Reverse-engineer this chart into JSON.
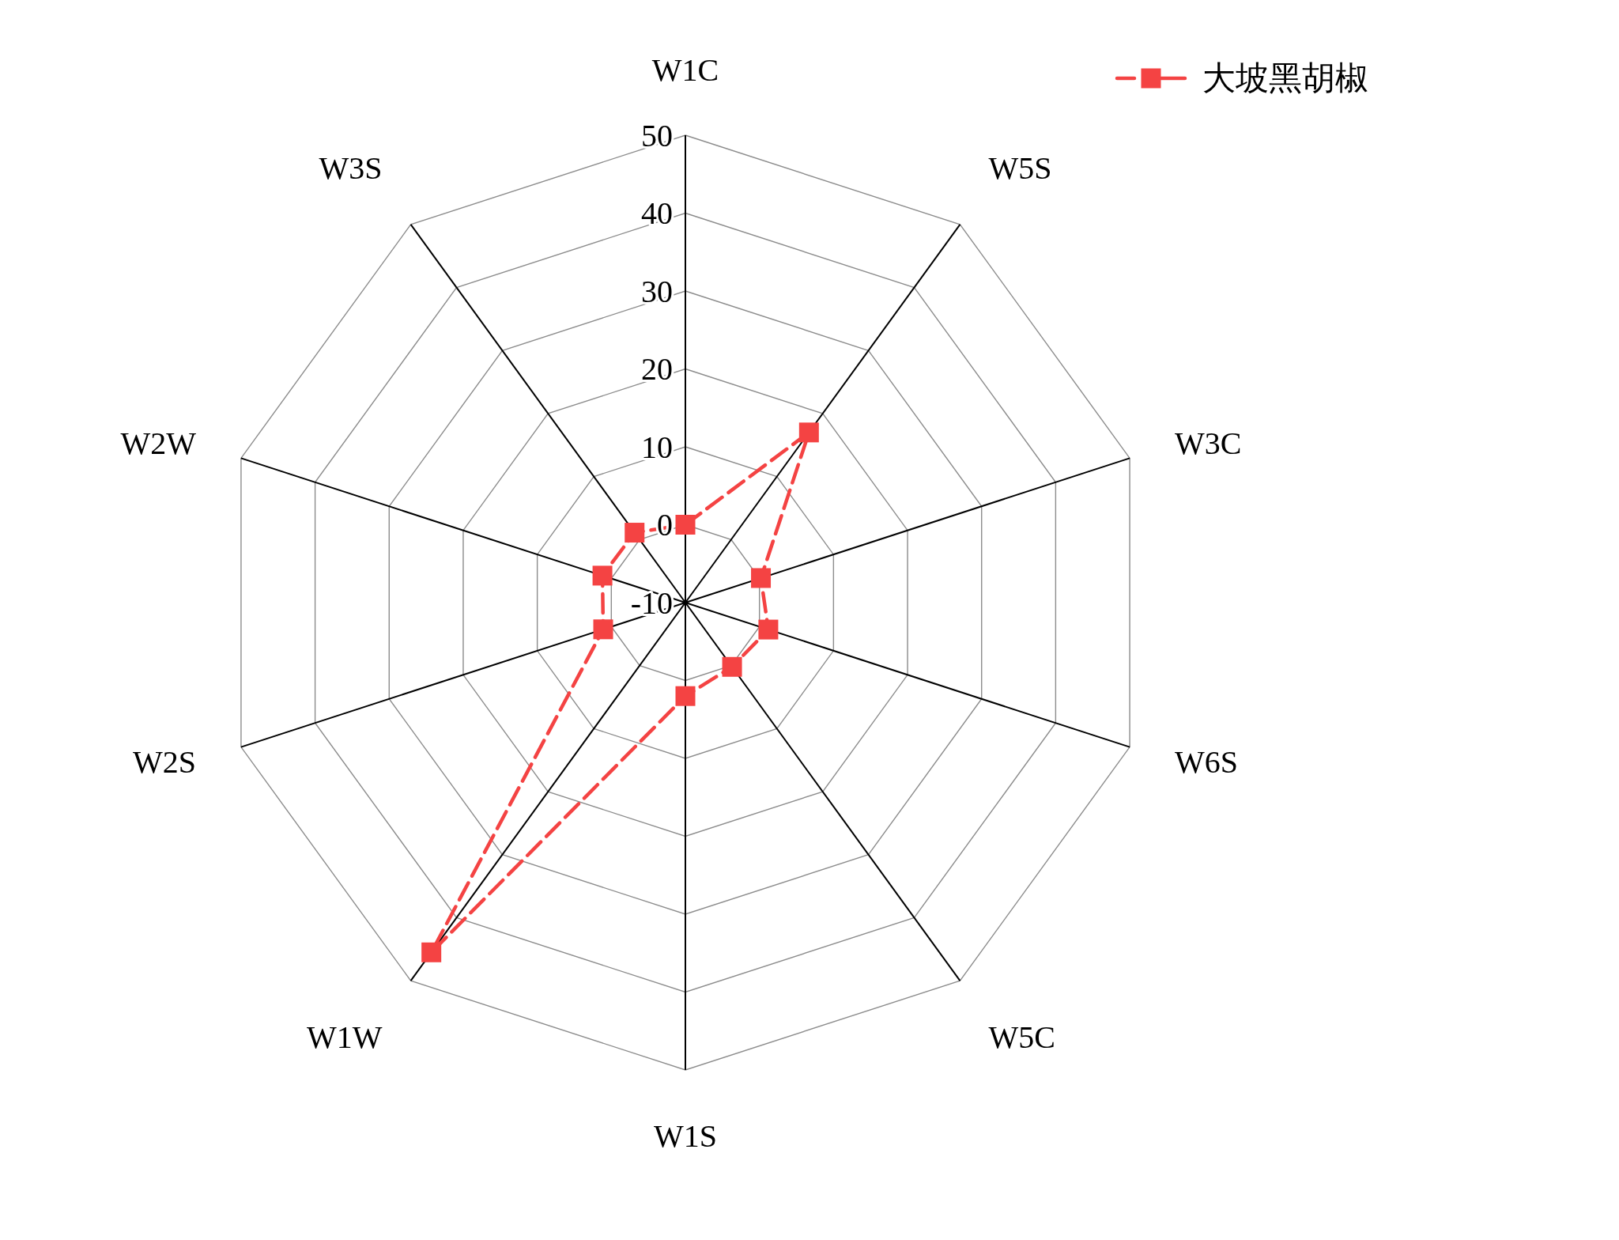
{
  "chart_data": {
    "type": "radar",
    "categories": [
      "W1C",
      "W5S",
      "W3C",
      "W6S",
      "W5C",
      "W1S",
      "W1W",
      "W2S",
      "W2W",
      "W3S"
    ],
    "series": [
      {
        "name": "大坡黑胡椒",
        "color": "#f44343",
        "values": [
          0,
          17,
          0.2,
          1.2,
          0.2,
          2,
          45.5,
          1.1,
          1.2,
          1.1
        ]
      }
    ],
    "ylim": [
      -10,
      50
    ],
    "yticks": [
      -10,
      0,
      10,
      20,
      30,
      40,
      50
    ],
    "grid": true,
    "legend": "top right",
    "marker": "square",
    "line_style": "dashed"
  }
}
